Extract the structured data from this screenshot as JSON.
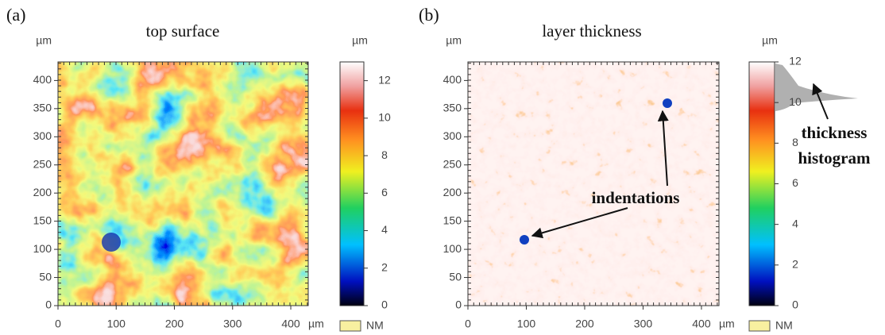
{
  "chart_data": [
    {
      "type": "heatmap",
      "panel_label": "(a)",
      "title": "top surface",
      "x_unit": "µm",
      "y_unit": "µm",
      "xlim": [
        0,
        430
      ],
      "xticks": [
        0,
        100,
        200,
        300,
        400
      ],
      "ylim": [
        0,
        433
      ],
      "yticks": [
        0,
        50,
        100,
        150,
        200,
        250,
        300,
        350,
        400
      ],
      "colorbar_unit": "µm",
      "clim": [
        0,
        13
      ],
      "cticks": [
        0,
        2,
        4,
        6,
        8,
        10,
        12
      ],
      "nm_label": "NM"
    },
    {
      "type": "heatmap",
      "panel_label": "(b)",
      "title": "layer thickness",
      "x_unit": "µm",
      "y_unit": "µm",
      "xlim": [
        0,
        430
      ],
      "xticks": [
        0,
        100,
        200,
        300,
        400
      ],
      "ylim": [
        0,
        433
      ],
      "yticks": [
        0,
        50,
        100,
        150,
        200,
        250,
        300,
        350,
        400
      ],
      "colorbar_unit": "µm",
      "clim": [
        0,
        12
      ],
      "cticks": [
        0,
        2,
        4,
        6,
        8,
        10,
        12
      ],
      "nm_label": "NM",
      "annotations": [
        "indentations",
        "thickness",
        "histogram"
      ]
    }
  ]
}
